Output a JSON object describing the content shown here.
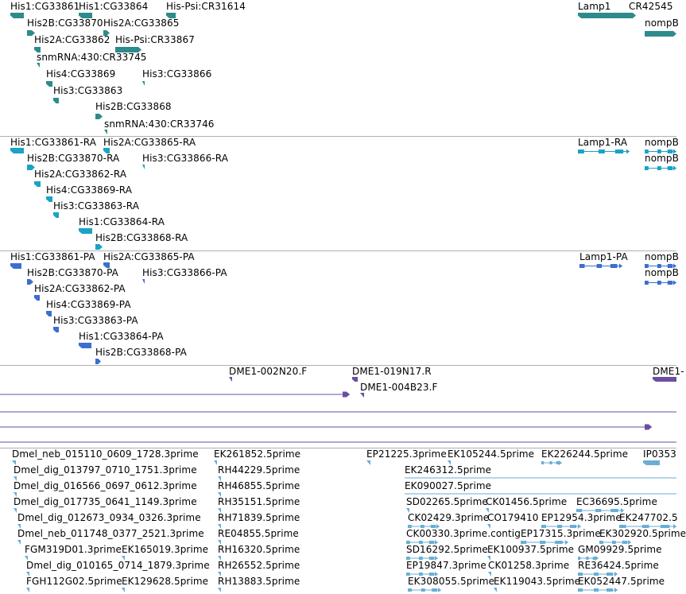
{
  "browser": {
    "title": "",
    "tracks": [
      {
        "id": "gene-models",
        "colors": {
          "gene": "#2e8b8b"
        },
        "features": [
          {
            "label": "His1:CG33861",
            "kind": "arrow"
          },
          {
            "label": "His1:CG33864",
            "kind": "arrow"
          },
          {
            "label": "His-Psi:CR31614",
            "kind": "arrow"
          },
          {
            "label": "Lamp1",
            "kind": "arrow"
          },
          {
            "label": "CR42545",
            "kind": "arrow"
          },
          {
            "label": "His2B:CG33870",
            "kind": "arrow"
          },
          {
            "label": "His2A:CG33865",
            "kind": "arrow"
          },
          {
            "label": "nompB",
            "kind": "arrow"
          },
          {
            "label": "His2A:CG33862",
            "kind": "arrow"
          },
          {
            "label": "His-Psi:CR33867",
            "kind": "arrow"
          },
          {
            "label": "snmRNA:430:CR33745",
            "kind": "arrow"
          },
          {
            "label": "His4:CG33869",
            "kind": "arrow"
          },
          {
            "label": "His3:CG33866",
            "kind": "arrow"
          },
          {
            "label": "His3:CG33863",
            "kind": "arrow"
          },
          {
            "label": "His2B:CG33868",
            "kind": "arrow"
          },
          {
            "label": "snmRNA:430:CR33746",
            "kind": "arrow"
          }
        ]
      },
      {
        "id": "transcripts",
        "colors": {
          "transcript": "#1aa3c4"
        },
        "features": [
          {
            "label": "His1:CG33861-RA",
            "kind": "arrow"
          },
          {
            "label": "His2A:CG33865-RA",
            "kind": "arrow"
          },
          {
            "label": "Lamp1-RA",
            "kind": "exons"
          },
          {
            "label": "nompB",
            "kind": "exons"
          },
          {
            "label": "His2B:CG33870-RA",
            "kind": "arrow"
          },
          {
            "label": "His3:CG33866-RA",
            "kind": "arrow"
          },
          {
            "label": "nompB",
            "kind": "exons"
          },
          {
            "label": "His2A:CG33862-RA",
            "kind": "arrow"
          },
          {
            "label": "His4:CG33869-RA",
            "kind": "arrow"
          },
          {
            "label": "His3:CG33863-RA",
            "kind": "arrow"
          },
          {
            "label": "His1:CG33864-RA",
            "kind": "arrow"
          },
          {
            "label": "His2B:CG33868-RA",
            "kind": "arrow"
          }
        ]
      },
      {
        "id": "proteins",
        "colors": {
          "protein": "#3a6fd0"
        },
        "features": [
          {
            "label": "His1:CG33861-PA",
            "kind": "arrow"
          },
          {
            "label": "His2A:CG33865-PA",
            "kind": "arrow"
          },
          {
            "label": "Lamp1-PA",
            "kind": "exons"
          },
          {
            "label": "nompB",
            "kind": "exons"
          },
          {
            "label": "His2B:CG33870-PA",
            "kind": "arrow"
          },
          {
            "label": "His3:CG33866-PA",
            "kind": "arrow"
          },
          {
            "label": "nompB",
            "kind": "exons"
          },
          {
            "label": "His2A:CG33862-PA",
            "kind": "arrow"
          },
          {
            "label": "His4:CG33869-PA",
            "kind": "arrow"
          },
          {
            "label": "His3:CG33863-PA",
            "kind": "arrow"
          },
          {
            "label": "His1:CG33864-PA",
            "kind": "arrow"
          },
          {
            "label": "His2B:CG33868-PA",
            "kind": "arrow"
          }
        ]
      },
      {
        "id": "bac-ends",
        "colors": {
          "clone": "#6a4fa0"
        },
        "features": [
          {
            "label": "DME1-002N20.F",
            "kind": "arrow"
          },
          {
            "label": "DME1-019N17.R",
            "kind": "arrow"
          },
          {
            "label": "DME1-",
            "kind": "arrow"
          },
          {
            "label": "DME1-004B23.F",
            "kind": "arrow"
          }
        ]
      },
      {
        "id": "ests",
        "colors": {
          "est": "#6aaed6"
        },
        "features": [
          {
            "label": "Dmel_neb_015110_0609_1728.3prime",
            "kind": "arrow"
          },
          {
            "label": "EK261852.5prime",
            "kind": "arrow"
          },
          {
            "label": "EP21225.3prime",
            "kind": "arrow"
          },
          {
            "label": "EK105244.5prime",
            "kind": "arrow"
          },
          {
            "label": "EK226244.5prime",
            "kind": "exons"
          },
          {
            "label": "IP0353",
            "kind": "arrow"
          },
          {
            "label": "Dmel_dig_013797_0710_1751.3prime",
            "kind": "arrow"
          },
          {
            "label": "RH44229.5prime",
            "kind": "arrow"
          },
          {
            "label": "EK246312.5prime",
            "kind": "line"
          },
          {
            "label": "Dmel_dig_016566_0697_0612.3prime",
            "kind": "arrow"
          },
          {
            "label": "RH46855.5prime",
            "kind": "arrow"
          },
          {
            "label": "EK090027.5prime",
            "kind": "line"
          },
          {
            "label": "Dmel_dig_017735_0641_1149.3prime",
            "kind": "arrow"
          },
          {
            "label": "RH35151.5prime",
            "kind": "arrow"
          },
          {
            "label": "SD02265.5prime",
            "kind": "arrow"
          },
          {
            "label": "CK01456.5prime",
            "kind": "arrow"
          },
          {
            "label": "EC36695.5prime",
            "kind": "exons"
          },
          {
            "label": "Dmel_dig_012673_0934_0326.3prime",
            "kind": "arrow"
          },
          {
            "label": "RH71839.5prime",
            "kind": "arrow"
          },
          {
            "label": "CK02429.3prime",
            "kind": "exons"
          },
          {
            "label": "CO179410",
            "kind": "arrow"
          },
          {
            "label": "EP12954.3prime",
            "kind": "exons"
          },
          {
            "label": "EK247702.5",
            "kind": "exons"
          },
          {
            "label": "Dmel_neb_011748_0377_2521.3prime",
            "kind": "arrow"
          },
          {
            "label": "RE04855.5prime",
            "kind": "arrow"
          },
          {
            "label": "CK00330.3prime.contig",
            "kind": "exons"
          },
          {
            "label": "EP17315.3prime",
            "kind": "exons"
          },
          {
            "label": "EK302920.5prime",
            "kind": "exons"
          },
          {
            "label": "FGM319D01.3prime",
            "kind": "arrow"
          },
          {
            "label": "EK165019.3prime",
            "kind": "arrow"
          },
          {
            "label": "RH16320.5prime",
            "kind": "arrow"
          },
          {
            "label": "SD16292.5prime",
            "kind": "exons"
          },
          {
            "label": "EK100937.5prime",
            "kind": "arrow"
          },
          {
            "label": "GM09929.5prime",
            "kind": "exons"
          },
          {
            "label": "Dmel_dig_010165_0714_1879.3prime",
            "kind": "arrow"
          },
          {
            "label": "RH26552.5prime",
            "kind": "arrow"
          },
          {
            "label": "EP19847.3prime",
            "kind": "exons"
          },
          {
            "label": "CK01258.3prime",
            "kind": "arrow"
          },
          {
            "label": "RE36424.5prime",
            "kind": "exons"
          },
          {
            "label": "FGH112G02.5prime",
            "kind": "arrow"
          },
          {
            "label": "EK129628.5prime",
            "kind": "arrow"
          },
          {
            "label": "RH13883.5prime",
            "kind": "arrow"
          },
          {
            "label": "EK308055.5prime",
            "kind": "exons"
          },
          {
            "label": "EK119043.5prime",
            "kind": "arrow"
          },
          {
            "label": "EK052447.5prime",
            "kind": "exons"
          }
        ]
      }
    ]
  }
}
